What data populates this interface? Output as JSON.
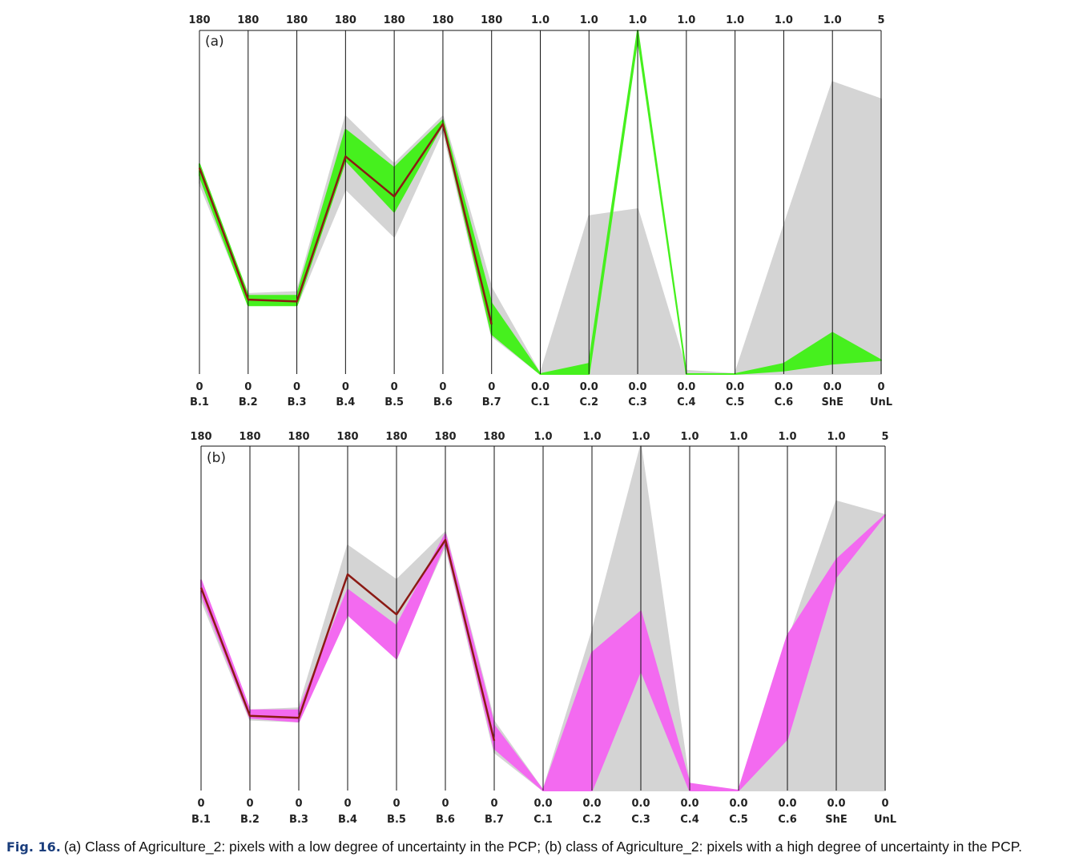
{
  "figure": {
    "label": "Fig. 16.",
    "caption": "(a) Class of Agriculture_2: pixels with a low degree of uncertainty in the PCP; (b) class of Agriculture_2: pixels with a high degree of uncertainty in the PCP."
  },
  "colors": {
    "background_lines": "#d4d4d4",
    "panel_a_highlight": "#46f01e",
    "panel_b_highlight": "#f36af0",
    "mean_line": "#8b1a14",
    "axis": "#111111"
  },
  "chart_data": [
    {
      "type": "line",
      "panel_label": "(a)",
      "axes": [
        "B.1",
        "B.2",
        "B.3",
        "B.4",
        "B.5",
        "B.6",
        "B.7",
        "C.1",
        "C.2",
        "C.3",
        "C.4",
        "C.5",
        "C.6",
        "ShE",
        "UnL"
      ],
      "axis_max_labels": [
        "180",
        "180",
        "180",
        "180",
        "180",
        "180",
        "180",
        "1.0",
        "1.0",
        "1.0",
        "1.0",
        "1.0",
        "1.0",
        "1.0",
        "5"
      ],
      "axis_min_labels": [
        "0",
        "0",
        "0",
        "0",
        "0",
        "0",
        "0",
        "0.0",
        "0.0",
        "0.0",
        "0.0",
        "0.0",
        "0.0",
        "0.0",
        "0"
      ],
      "axis_ranges": [
        [
          0,
          180
        ],
        [
          0,
          180
        ],
        [
          0,
          180
        ],
        [
          0,
          180
        ],
        [
          0,
          180
        ],
        [
          0,
          180
        ],
        [
          0,
          180
        ],
        [
          0,
          1
        ],
        [
          0,
          1
        ],
        [
          0,
          1
        ],
        [
          0,
          1
        ],
        [
          0,
          1
        ],
        [
          0,
          1
        ],
        [
          0,
          1
        ],
        [
          0,
          5
        ]
      ],
      "background_band": {
        "upper": [
          105,
          42,
          43,
          135,
          110,
          135,
          45,
          0.0,
          0.46,
          0.48,
          0.01,
          0.0,
          0.43,
          0.85,
          4.0
        ],
        "lower": [
          100,
          37,
          36,
          97,
          72,
          128,
          20,
          0.0,
          0.0,
          0.0,
          0.0,
          0.0,
          0.0,
          0.0,
          0.0
        ]
      },
      "highlight_band": {
        "upper": [
          110,
          41,
          41,
          128,
          108,
          133,
          37,
          0.0,
          0.03,
          1.0,
          0.0,
          0.0,
          0.03,
          0.12,
          0.2
        ],
        "lower": [
          104,
          36,
          36,
          112,
          85,
          131,
          21,
          0.0,
          0.0,
          0.98,
          0.0,
          0.0,
          0.01,
          0.03,
          0.2
        ]
      },
      "mean_line": [
        108,
        39,
        38,
        114,
        93,
        131,
        26,
        0.0,
        0.0,
        1.0,
        0.0,
        0.0,
        0.0,
        0.0,
        0.0
      ]
    },
    {
      "type": "line",
      "panel_label": "(b)",
      "axes": [
        "B.1",
        "B.2",
        "B.3",
        "B.4",
        "B.5",
        "B.6",
        "B.7",
        "C.1",
        "C.2",
        "C.3",
        "C.4",
        "C.5",
        "C.6",
        "ShE",
        "UnL"
      ],
      "axis_max_labels": [
        "180",
        "180",
        "180",
        "180",
        "180",
        "180",
        "180",
        "1.0",
        "1.0",
        "1.0",
        "1.0",
        "1.0",
        "1.0",
        "1.0",
        "5"
      ],
      "axis_min_labels": [
        "0",
        "0",
        "0",
        "0",
        "0",
        "0",
        "0",
        "0.0",
        "0.0",
        "0.0",
        "0.0",
        "0.0",
        "0.0",
        "0.0",
        "0"
      ],
      "axis_ranges": [
        [
          0,
          180
        ],
        [
          0,
          180
        ],
        [
          0,
          180
        ],
        [
          0,
          180
        ],
        [
          0,
          180
        ],
        [
          0,
          180
        ],
        [
          0,
          180
        ],
        [
          0,
          1
        ],
        [
          0,
          1
        ],
        [
          0,
          1
        ],
        [
          0,
          1
        ],
        [
          0,
          1
        ],
        [
          0,
          1
        ],
        [
          0,
          1
        ],
        [
          0,
          5
        ]
      ],
      "background_band": {
        "upper": [
          105,
          42,
          43,
          128,
          110,
          135,
          36,
          0.0,
          0.46,
          1.0,
          0.01,
          0.0,
          0.43,
          0.84,
          4.0
        ],
        "lower": [
          100,
          37,
          36,
          97,
          72,
          128,
          20,
          0.0,
          0.0,
          0.0,
          0.0,
          0.0,
          0.0,
          0.0,
          0.0
        ]
      },
      "highlight_band": {
        "upper": [
          110,
          42,
          42,
          105,
          86,
          134,
          34,
          0.0,
          0.4,
          0.52,
          0.02,
          0.0,
          0.45,
          0.67,
          4.0
        ],
        "lower": [
          103,
          38,
          36,
          92,
          69,
          130,
          22,
          0.0,
          0.0,
          0.35,
          0.0,
          0.0,
          0.15,
          0.62,
          4.0
        ]
      },
      "mean_line": [
        106,
        39,
        38,
        113,
        92,
        131,
        26,
        0.0,
        0.0,
        1.0,
        0.0,
        0.0,
        0.0,
        0.0,
        0.0
      ]
    }
  ]
}
